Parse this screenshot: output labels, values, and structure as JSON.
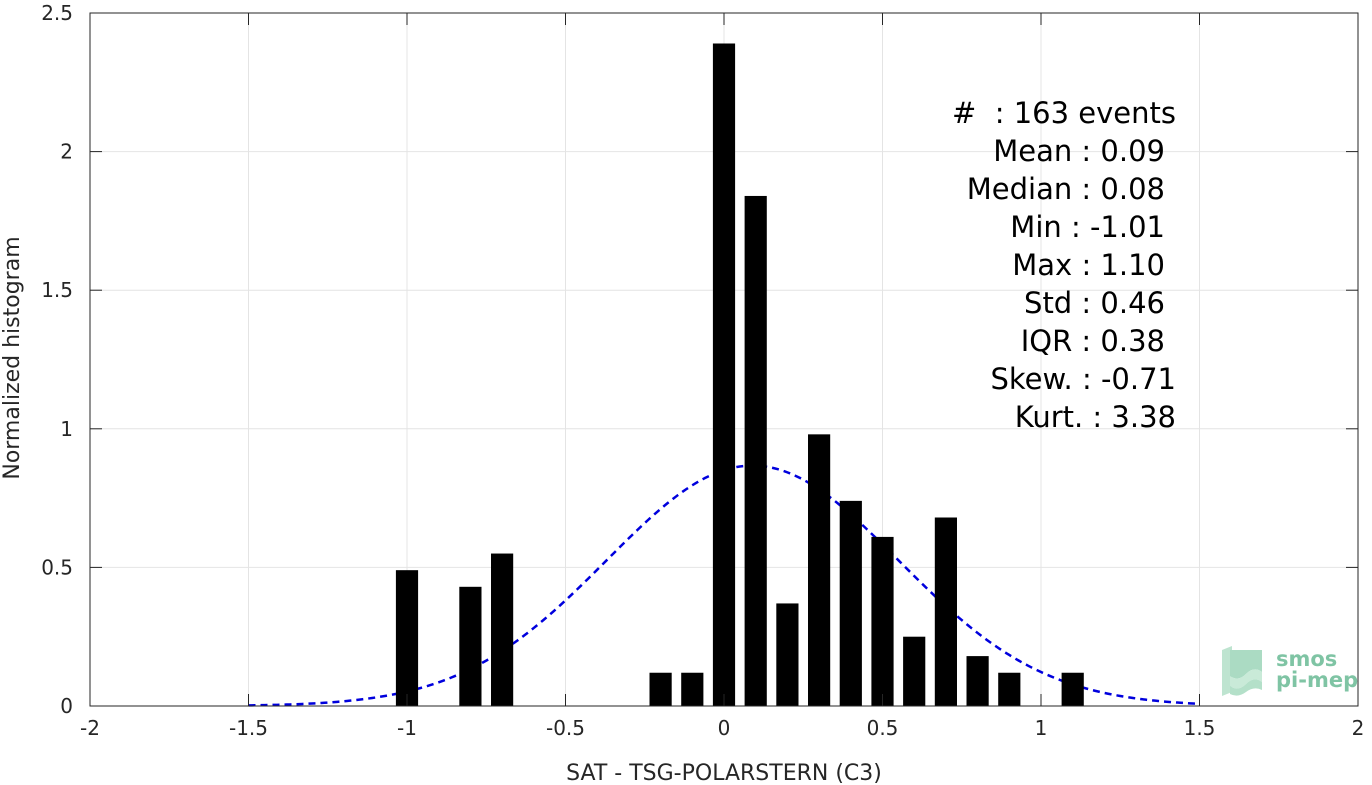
{
  "chart_data": {
    "type": "bar",
    "title": "",
    "xlabel": "SAT - TSG-POLARSTERN (C3)",
    "ylabel": "Normalized histogram",
    "xlim": [
      -2,
      2
    ],
    "ylim": [
      0,
      2.5
    ],
    "grid": true,
    "x_ticks": [
      "-2",
      "-1.5",
      "-1",
      "-0.5",
      "0",
      "0.5",
      "1",
      "1.5",
      "2"
    ],
    "y_ticks": [
      "0",
      "0.5",
      "1",
      "1.5",
      "2",
      "2.5"
    ],
    "bar_color": "#000000",
    "bars": [
      {
        "x": -1.0,
        "value": 0.49
      },
      {
        "x": -0.8,
        "value": 0.43
      },
      {
        "x": -0.7,
        "value": 0.55
      },
      {
        "x": -0.2,
        "value": 0.12
      },
      {
        "x": -0.1,
        "value": 0.12
      },
      {
        "x": 0.0,
        "value": 2.39
      },
      {
        "x": 0.1,
        "value": 1.84
      },
      {
        "x": 0.2,
        "value": 0.37
      },
      {
        "x": 0.3,
        "value": 0.98
      },
      {
        "x": 0.4,
        "value": 0.74
      },
      {
        "x": 0.5,
        "value": 0.61
      },
      {
        "x": 0.6,
        "value": 0.25
      },
      {
        "x": 0.7,
        "value": 0.68
      },
      {
        "x": 0.8,
        "value": 0.18
      },
      {
        "x": 0.9,
        "value": 0.12
      },
      {
        "x": 1.1,
        "value": 0.12
      }
    ],
    "bar_width": 0.07,
    "fit_curve": {
      "type": "normal",
      "mean": 0.09,
      "std": 0.46,
      "x_range": [
        -1.5,
        1.5
      ],
      "color": "#0000dd",
      "style": "dashed"
    },
    "stats_lines": [
      "#  : 163 events",
      "Mean : 0.09",
      "Median : 0.08",
      "Min : -1.01",
      "Max : 1.10",
      "Std : 0.46",
      "IQR : 0.38",
      "Skew. : -0.71",
      "Kurt. : 3.38"
    ]
  },
  "logo": {
    "line1": "smos",
    "line2": "pi-mep"
  }
}
